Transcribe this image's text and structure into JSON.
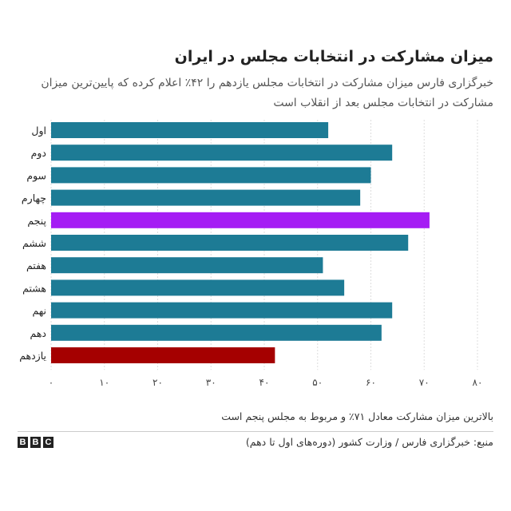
{
  "header": {
    "title": "میزان مشارکت در انتخابات مجلس در ایران",
    "subtitle": "خبرگزاری فارس میزان مشارکت در انتخابات مجلس یازدهم را ۴۲٪ اعلام کرده که پایین‌ترین میزان مشارکت در انتخابات مجلس بعد از انقلاب است"
  },
  "footer": {
    "note": "بالاترین میزان مشارکت معادل ۷۱٪ و مربوط به مجلس پنجم است",
    "source": "منبع: خبرگزاری فارس / وزارت کشور (دوره‌های اول تا دهم)",
    "logo_letters": [
      "B",
      "B",
      "C"
    ]
  },
  "chart_data": {
    "type": "bar",
    "orientation": "horizontal",
    "title": "میزان مشارکت در انتخابات مجلس در ایران",
    "categories": [
      "اول",
      "دوم",
      "سوم",
      "چهارم",
      "پنجم",
      "ششم",
      "هفتم",
      "هشتم",
      "نهم",
      "دهم",
      "یازدهم"
    ],
    "values": [
      52,
      64,
      60,
      58,
      71,
      67,
      51,
      55,
      64,
      62,
      42
    ],
    "colors": [
      "#1d7b95",
      "#1d7b95",
      "#1d7b95",
      "#1d7b95",
      "#a51cf4",
      "#1d7b95",
      "#1d7b95",
      "#1d7b95",
      "#1d7b95",
      "#1d7b95",
      "#a50000"
    ],
    "xlim": [
      0,
      80
    ],
    "xticks": [
      0,
      10,
      20,
      30,
      40,
      50,
      60,
      70,
      80
    ],
    "xtick_labels": [
      "۰",
      "۱۰",
      "۲۰",
      "۳۰",
      "۴۰",
      "۵۰",
      "۶۰",
      "۷۰",
      "۸۰"
    ],
    "grid": true,
    "xlabel": "",
    "ylabel": ""
  }
}
